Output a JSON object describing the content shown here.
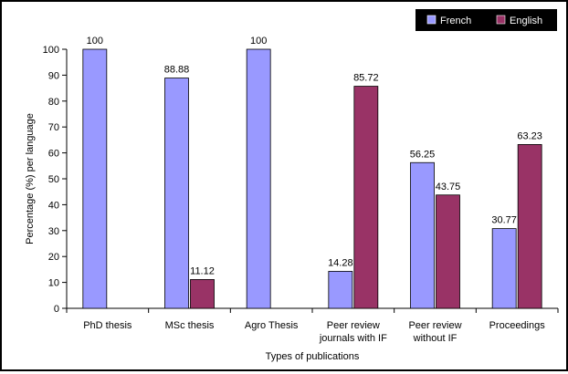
{
  "chart_data": {
    "type": "bar",
    "title": "",
    "xlabel": "Types of publications",
    "ylabel": "Percentage (%) per language",
    "ylim": [
      0,
      100
    ],
    "yticks": [
      0,
      10,
      20,
      30,
      40,
      50,
      60,
      70,
      80,
      90,
      100
    ],
    "grid": false,
    "legend_position": "top-right",
    "categories": [
      [
        "PhD thesis"
      ],
      [
        "MSc thesis"
      ],
      [
        "Agro Thesis"
      ],
      [
        "Peer review",
        "journals with IF"
      ],
      [
        "Peer review",
        "without IF"
      ],
      [
        "Proceedings"
      ]
    ],
    "series": [
      {
        "name": "French",
        "color": "#9999ff",
        "values": [
          100,
          88.88,
          100,
          14.28,
          56.25,
          30.77
        ],
        "labels": [
          "100",
          "88.88",
          "100",
          "14.28",
          "56.25",
          "30.77"
        ]
      },
      {
        "name": "English",
        "color": "#993366",
        "values": [
          null,
          11.12,
          null,
          85.72,
          43.75,
          63.23
        ],
        "labels": [
          "",
          "11.12",
          "",
          "85.72",
          "43.75",
          "63.23"
        ]
      }
    ]
  }
}
